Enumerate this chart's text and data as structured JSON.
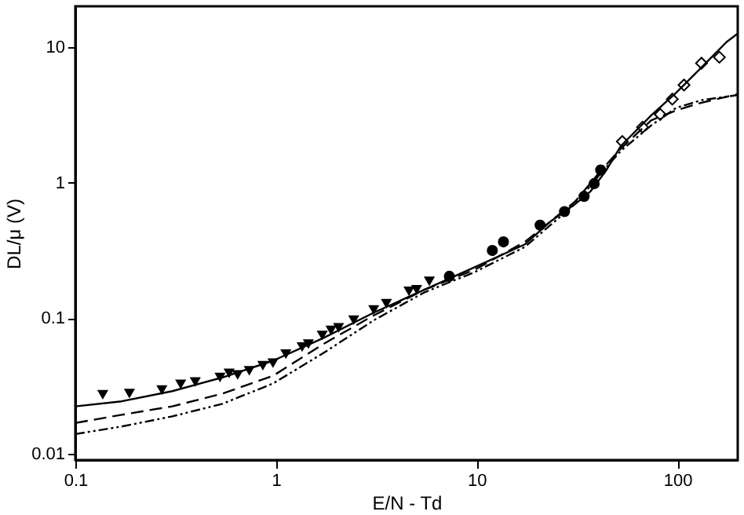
{
  "chart_data": {
    "type": "scatter",
    "xlabel": "E/N - Td",
    "ylabel": "DL/μ (V)",
    "log": "xy",
    "grid": false,
    "xlim": [
      0.1,
      200
    ],
    "ylim": [
      0.009,
      20
    ],
    "xticks": [
      0.1,
      1,
      10,
      100
    ],
    "yticks": [
      0.01,
      0.1,
      1,
      10
    ],
    "series": [
      {
        "marker": "triangle",
        "color": "#000000",
        "x": [
          0.137,
          0.186,
          0.27,
          0.335,
          0.396,
          0.526,
          0.584,
          0.644,
          0.736,
          0.86,
          0.966,
          1.12,
          1.35,
          1.45,
          1.7,
          1.88,
          2.05,
          2.44,
          3.07,
          3.55,
          4.6,
          5.02,
          5.81
        ],
        "values": [
          0.0273,
          0.0278,
          0.0295,
          0.0325,
          0.0339,
          0.0366,
          0.0392,
          0.0382,
          0.0409,
          0.0446,
          0.0466,
          0.0543,
          0.0612,
          0.0645,
          0.0746,
          0.0813,
          0.0849,
          0.0966,
          0.115,
          0.128,
          0.158,
          0.162,
          0.187
        ]
      },
      {
        "marker": "circle",
        "color": "#000000",
        "x": [
          7.31,
          11.97,
          13.6,
          20.7,
          27.4,
          34.3,
          38.5,
          41.5
        ],
        "values": [
          0.204,
          0.316,
          0.366,
          0.486,
          0.612,
          0.792,
          0.984,
          1.24
        ]
      },
      {
        "marker": "diamond",
        "color": "#000000",
        "x": [
          53.2,
          67.1,
          82.2,
          94.4,
          108,
          132,
          162
        ],
        "values": [
          2.01,
          2.57,
          3.19,
          4.13,
          5.25,
          7.6,
          8.42
        ]
      },
      {
        "type": "line",
        "line_style": "solid",
        "color": "#000000",
        "x": [
          0.1,
          0.17,
          0.304,
          0.541,
          0.966,
          1.72,
          3.07,
          5.48,
          9.77,
          17.4,
          23.3,
          31.0,
          37.0,
          44.0,
          52.4,
          74.0,
          98.9,
          132,
          176,
          200
        ],
        "values": [
          0.0224,
          0.0244,
          0.029,
          0.0366,
          0.0486,
          0.0715,
          0.11,
          0.162,
          0.238,
          0.351,
          0.516,
          0.697,
          0.865,
          1.22,
          1.87,
          3.13,
          4.62,
          7.09,
          10.9,
          12.6
        ]
      },
      {
        "type": "line",
        "line_style": "dashed",
        "color": "#000000",
        "x": [
          0.1,
          0.17,
          0.304,
          0.541,
          0.966,
          1.72,
          3.07,
          5.48,
          9.77,
          17.4,
          31.0,
          41.5,
          52.4,
          74.0,
          98.9,
          132,
          200
        ],
        "values": [
          0.0169,
          0.0194,
          0.0224,
          0.0278,
          0.0376,
          0.0645,
          0.105,
          0.162,
          0.228,
          0.366,
          0.728,
          1.22,
          1.79,
          2.88,
          3.42,
          3.89,
          4.5
        ]
      },
      {
        "type": "line",
        "line_style": "dotted",
        "color": "#000000",
        "x": [
          0.1,
          0.17,
          0.304,
          0.541,
          0.723,
          0.966,
          1.72,
          3.07,
          5.48,
          9.77,
          17.4,
          31.0,
          41.5,
          52.4,
          74.0,
          98.9,
          132,
          200
        ],
        "values": [
          0.014,
          0.0159,
          0.0189,
          0.0234,
          0.0278,
          0.033,
          0.0553,
          0.0966,
          0.155,
          0.219,
          0.336,
          0.697,
          1.17,
          1.72,
          2.64,
          3.57,
          4.06,
          4.43
        ]
      }
    ]
  }
}
